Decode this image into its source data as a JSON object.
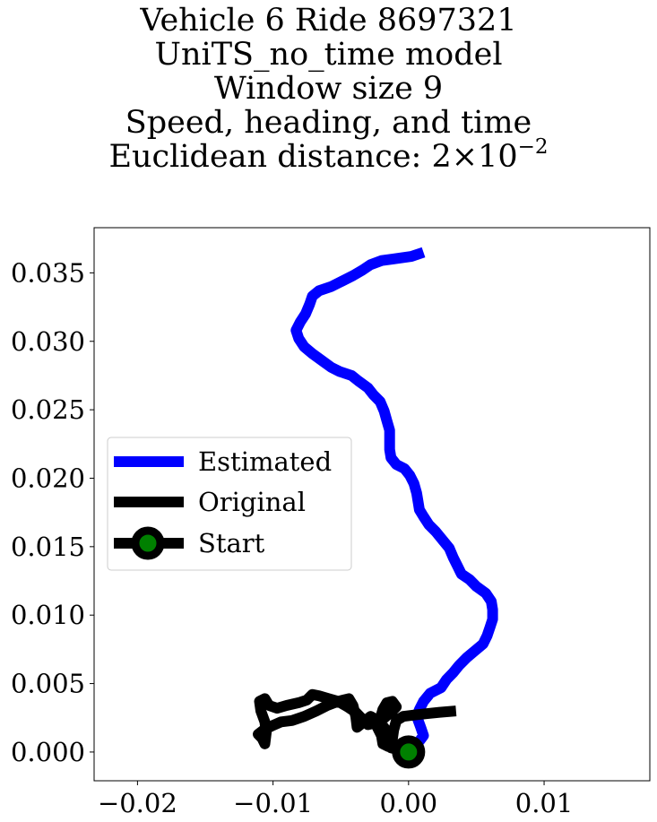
{
  "title_lines": [
    "Vehicle 6 Ride 8697321",
    "UniTS_no_time model",
    "Window size 9",
    "Speed, heading, and time"
  ],
  "title_distance": {
    "prefix": "Euclidean distance: 2",
    "times": "×",
    "base": "10",
    "exponent": "−2"
  },
  "chart_data": {
    "type": "line",
    "xlim": [
      -0.0232,
      0.0178
    ],
    "ylim": [
      -0.0021,
      0.0383
    ],
    "xticks": [
      -0.02,
      -0.01,
      0.0,
      0.01
    ],
    "xtick_labels": [
      "−0.02",
      "−0.01",
      "0.00",
      "0.01"
    ],
    "yticks": [
      0.0,
      0.005,
      0.01,
      0.015,
      0.02,
      0.025,
      0.03,
      0.035
    ],
    "ytick_labels": [
      "0.000",
      "0.005",
      "0.010",
      "0.015",
      "0.020",
      "0.025",
      "0.030",
      "0.035"
    ],
    "grid": false,
    "legend_position": "center-left",
    "series": [
      {
        "name": "Estimated",
        "color": "#0000ff",
        "points": [
          [
            0.0,
            0.0
          ],
          [
            0.0008,
            0.0008
          ],
          [
            0.0011,
            0.0012
          ],
          [
            0.0009,
            0.0018
          ],
          [
            0.0006,
            0.0026
          ],
          [
            0.0008,
            0.0031
          ],
          [
            0.0011,
            0.0037
          ],
          [
            0.0016,
            0.0043
          ],
          [
            0.0024,
            0.0047
          ],
          [
            0.0028,
            0.0053
          ],
          [
            0.0033,
            0.0058
          ],
          [
            0.0037,
            0.0063
          ],
          [
            0.0043,
            0.0069
          ],
          [
            0.0049,
            0.0074
          ],
          [
            0.0055,
            0.0079
          ],
          [
            0.0058,
            0.0085
          ],
          [
            0.006,
            0.0091
          ],
          [
            0.0062,
            0.0097
          ],
          [
            0.0062,
            0.0104
          ],
          [
            0.0061,
            0.011
          ],
          [
            0.0057,
            0.0116
          ],
          [
            0.005,
            0.0121
          ],
          [
            0.0045,
            0.0126
          ],
          [
            0.0039,
            0.013
          ],
          [
            0.0036,
            0.0136
          ],
          [
            0.0033,
            0.0142
          ],
          [
            0.003,
            0.0149
          ],
          [
            0.0025,
            0.0155
          ],
          [
            0.002,
            0.0161
          ],
          [
            0.0015,
            0.0166
          ],
          [
            0.0011,
            0.0172
          ],
          [
            0.0008,
            0.0177
          ],
          [
            0.0007,
            0.0183
          ],
          [
            0.0006,
            0.0189
          ],
          [
            0.0004,
            0.0196
          ],
          [
            0.0001,
            0.0202
          ],
          [
            -0.0003,
            0.0207
          ],
          [
            -0.0009,
            0.021
          ],
          [
            -0.0013,
            0.0215
          ],
          [
            -0.0014,
            0.0221
          ],
          [
            -0.0014,
            0.0228
          ],
          [
            -0.0014,
            0.0235
          ],
          [
            -0.0016,
            0.0242
          ],
          [
            -0.0018,
            0.0249
          ],
          [
            -0.0021,
            0.0256
          ],
          [
            -0.0026,
            0.0261
          ],
          [
            -0.003,
            0.0266
          ],
          [
            -0.0037,
            0.0271
          ],
          [
            -0.0042,
            0.0275
          ],
          [
            -0.0051,
            0.0278
          ],
          [
            -0.0057,
            0.0281
          ],
          [
            -0.0064,
            0.0286
          ],
          [
            -0.0071,
            0.0291
          ],
          [
            -0.0077,
            0.0296
          ],
          [
            -0.0081,
            0.0302
          ],
          [
            -0.0083,
            0.0308
          ],
          [
            -0.008,
            0.0314
          ],
          [
            -0.0076,
            0.032
          ],
          [
            -0.0073,
            0.0327
          ],
          [
            -0.0071,
            0.0333
          ],
          [
            -0.0066,
            0.0337
          ],
          [
            -0.0057,
            0.034
          ],
          [
            -0.0049,
            0.0344
          ],
          [
            -0.0041,
            0.0348
          ],
          [
            -0.0034,
            0.0352
          ],
          [
            -0.0028,
            0.0356
          ],
          [
            -0.002,
            0.0359
          ],
          [
            -0.0012,
            0.036
          ],
          [
            -0.0005,
            0.0361
          ],
          [
            0.0002,
            0.0362
          ],
          [
            0.0011,
            0.0365
          ]
        ]
      },
      {
        "name": "Original",
        "color": "#000000",
        "points": [
          [
            0.0,
            0.0
          ],
          [
            -0.0013,
            0.0003
          ],
          [
            -0.0019,
            0.0008
          ],
          [
            -0.0016,
            0.0015
          ],
          [
            -0.0021,
            0.0022
          ],
          [
            -0.0028,
            0.0026
          ],
          [
            -0.0033,
            0.0022
          ],
          [
            -0.0038,
            0.0018
          ],
          [
            -0.0039,
            0.0026
          ],
          [
            -0.0041,
            0.0034
          ],
          [
            -0.0044,
            0.0039
          ],
          [
            -0.0052,
            0.0037
          ],
          [
            -0.006,
            0.0034
          ],
          [
            -0.0068,
            0.003
          ],
          [
            -0.0077,
            0.0026
          ],
          [
            -0.0086,
            0.0023
          ],
          [
            -0.0094,
            0.0022
          ],
          [
            -0.0101,
            0.0019
          ],
          [
            -0.0107,
            0.0016
          ],
          [
            -0.0111,
            0.0013
          ],
          [
            -0.0108,
            0.001
          ],
          [
            -0.0106,
            0.0006
          ],
          [
            -0.0105,
            0.0014
          ],
          [
            -0.0106,
            0.0022
          ],
          [
            -0.0109,
            0.003
          ],
          [
            -0.011,
            0.0037
          ],
          [
            -0.0106,
            0.0039
          ],
          [
            -0.0103,
            0.0034
          ],
          [
            -0.0097,
            0.0032
          ],
          [
            -0.009,
            0.0034
          ],
          [
            -0.0081,
            0.0036
          ],
          [
            -0.0075,
            0.0038
          ],
          [
            -0.0071,
            0.0042
          ],
          [
            -0.0066,
            0.0041
          ],
          [
            -0.0059,
            0.0039
          ],
          [
            -0.0052,
            0.0037
          ],
          [
            -0.0045,
            0.0033
          ],
          [
            -0.0039,
            0.0029
          ],
          [
            -0.0034,
            0.0024
          ],
          [
            -0.003,
            0.002
          ],
          [
            -0.0026,
            0.0021
          ],
          [
            -0.0019,
            0.0024
          ],
          [
            -0.0013,
            0.0029
          ],
          [
            -0.0009,
            0.0033
          ],
          [
            -0.0012,
            0.0037
          ],
          [
            -0.0016,
            0.0036
          ],
          [
            -0.0019,
            0.0031
          ],
          [
            -0.0021,
            0.0024
          ],
          [
            -0.0023,
            0.0018
          ],
          [
            -0.002,
            0.0012
          ],
          [
            -0.0019,
            0.0006
          ],
          [
            -0.0015,
            0.0004
          ],
          [
            -0.0012,
            0.0009
          ],
          [
            -0.0011,
            0.0016
          ],
          [
            -0.0009,
            0.0023
          ],
          [
            -0.0004,
            0.0026
          ],
          [
            0.0004,
            0.0027
          ],
          [
            0.0013,
            0.0028
          ],
          [
            0.0023,
            0.0029
          ],
          [
            0.0035,
            0.003
          ]
        ]
      }
    ],
    "start_marker": {
      "name": "Start",
      "x": 0.0,
      "y": 0.0,
      "edge_color": "#000000",
      "face_color": "#008000"
    }
  },
  "legend": {
    "items": [
      {
        "label": "Estimated",
        "color": "#0000ff",
        "marker": false
      },
      {
        "label": "Original",
        "color": "#000000",
        "marker": false
      },
      {
        "label": "Start",
        "color": "#000000",
        "marker": true
      }
    ]
  }
}
